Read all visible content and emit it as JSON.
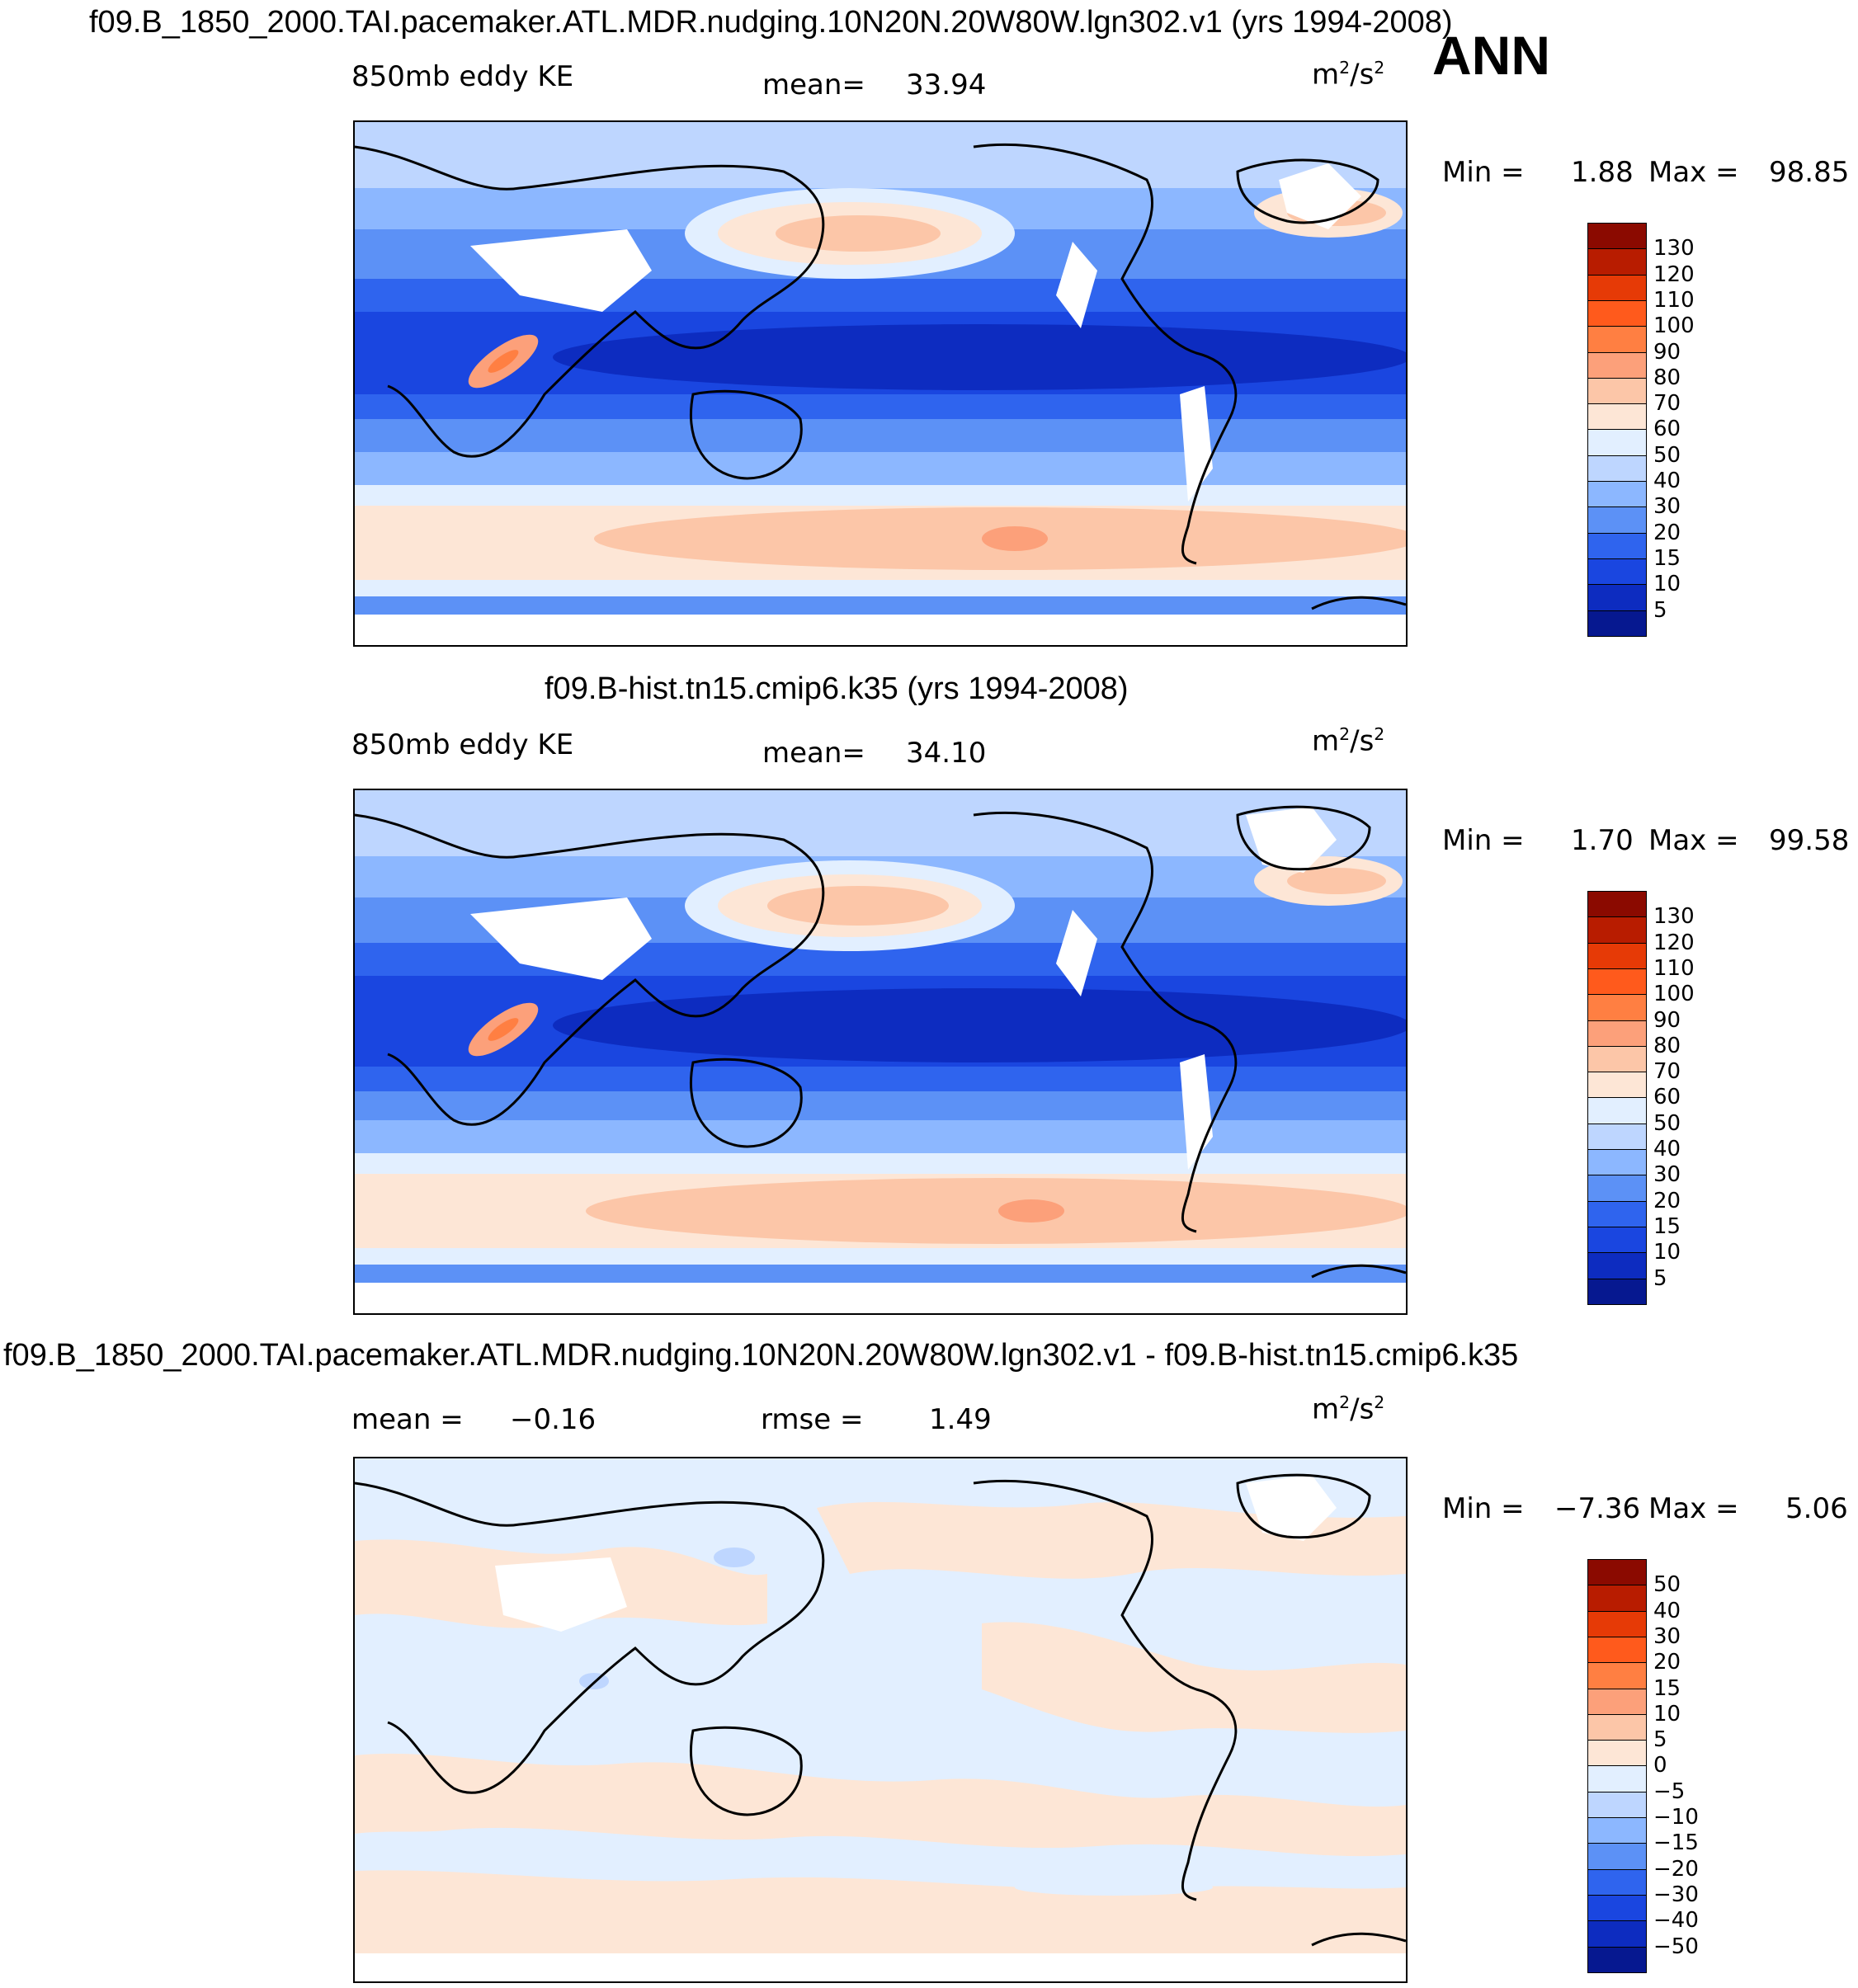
{
  "figure": {
    "season": "ANN",
    "panels": [
      {
        "title": "f09.B_1850_2000.TAI.pacemaker.ATL.MDR.nudging.10N20N.20W80W.lgn302.v1 (yrs 1994-2008)",
        "variable": "850mb eddy KE",
        "stat1_label": "mean=",
        "stat1_value": "33.94",
        "units": "m",
        "units_exp": "2",
        "units_tail": "/s",
        "units_exp2": "2",
        "min_label": "Min =",
        "min_value": "1.88",
        "max_label": "Max =",
        "max_value": "98.85",
        "colorbar": {
          "labels": [
            "130",
            "120",
            "110",
            "100",
            "90",
            "80",
            "70",
            "60",
            "50",
            "40",
            "30",
            "20",
            "15",
            "10",
            "5"
          ],
          "colors": [
            "#8b0a00",
            "#b81c00",
            "#e63a06",
            "#ff5a1c",
            "#ff7f42",
            "#fca07a",
            "#fcc6a8",
            "#fde6d6",
            "#e2efff",
            "#bed6ff",
            "#8cb7ff",
            "#5c91f6",
            "#2f64ee",
            "#1a46e0",
            "#0d2cc0",
            "#061890"
          ]
        }
      },
      {
        "title": "f09.B-hist.tn15.cmip6.k35 (yrs 1994-2008)",
        "variable": "850mb eddy KE",
        "stat1_label": "mean=",
        "stat1_value": "34.10",
        "units": "m",
        "units_exp": "2",
        "units_tail": "/s",
        "units_exp2": "2",
        "min_label": "Min =",
        "min_value": "1.70",
        "max_label": "Max =",
        "max_value": "99.58",
        "colorbar": {
          "labels": [
            "130",
            "120",
            "110",
            "100",
            "90",
            "80",
            "70",
            "60",
            "50",
            "40",
            "30",
            "20",
            "15",
            "10",
            "5"
          ],
          "colors": [
            "#8b0a00",
            "#b81c00",
            "#e63a06",
            "#ff5a1c",
            "#ff7f42",
            "#fca07a",
            "#fcc6a8",
            "#fde6d6",
            "#e2efff",
            "#bed6ff",
            "#8cb7ff",
            "#5c91f6",
            "#2f64ee",
            "#1a46e0",
            "#0d2cc0",
            "#061890"
          ]
        }
      },
      {
        "title": "f09.B_1850_2000.TAI.pacemaker.ATL.MDR.nudging.10N20N.20W80W.lgn302.v1 - f09.B-hist.tn15.cmip6.k35",
        "stat0_label": "mean =",
        "stat0_value": "−0.16",
        "stat1_label": "rmse =",
        "stat1_value": "1.49",
        "units": "m",
        "units_exp": "2",
        "units_tail": "/s",
        "units_exp2": "2",
        "min_label": "Min =",
        "min_value": "−7.36",
        "max_label": "Max =",
        "max_value": "5.06",
        "colorbar": {
          "labels": [
            "50",
            "40",
            "30",
            "20",
            "15",
            "10",
            "5",
            "0",
            "−5",
            "−10",
            "−15",
            "−20",
            "−30",
            "−40",
            "−50"
          ],
          "colors": [
            "#8b0a00",
            "#b81c00",
            "#e63a06",
            "#ff5a1c",
            "#ff7f42",
            "#fca07a",
            "#fcc6a8",
            "#fde6d6",
            "#e2efff",
            "#bed6ff",
            "#8cb7ff",
            "#5c91f6",
            "#2f64ee",
            "#1a46e0",
            "#0d2cc0",
            "#061890"
          ]
        }
      }
    ]
  }
}
